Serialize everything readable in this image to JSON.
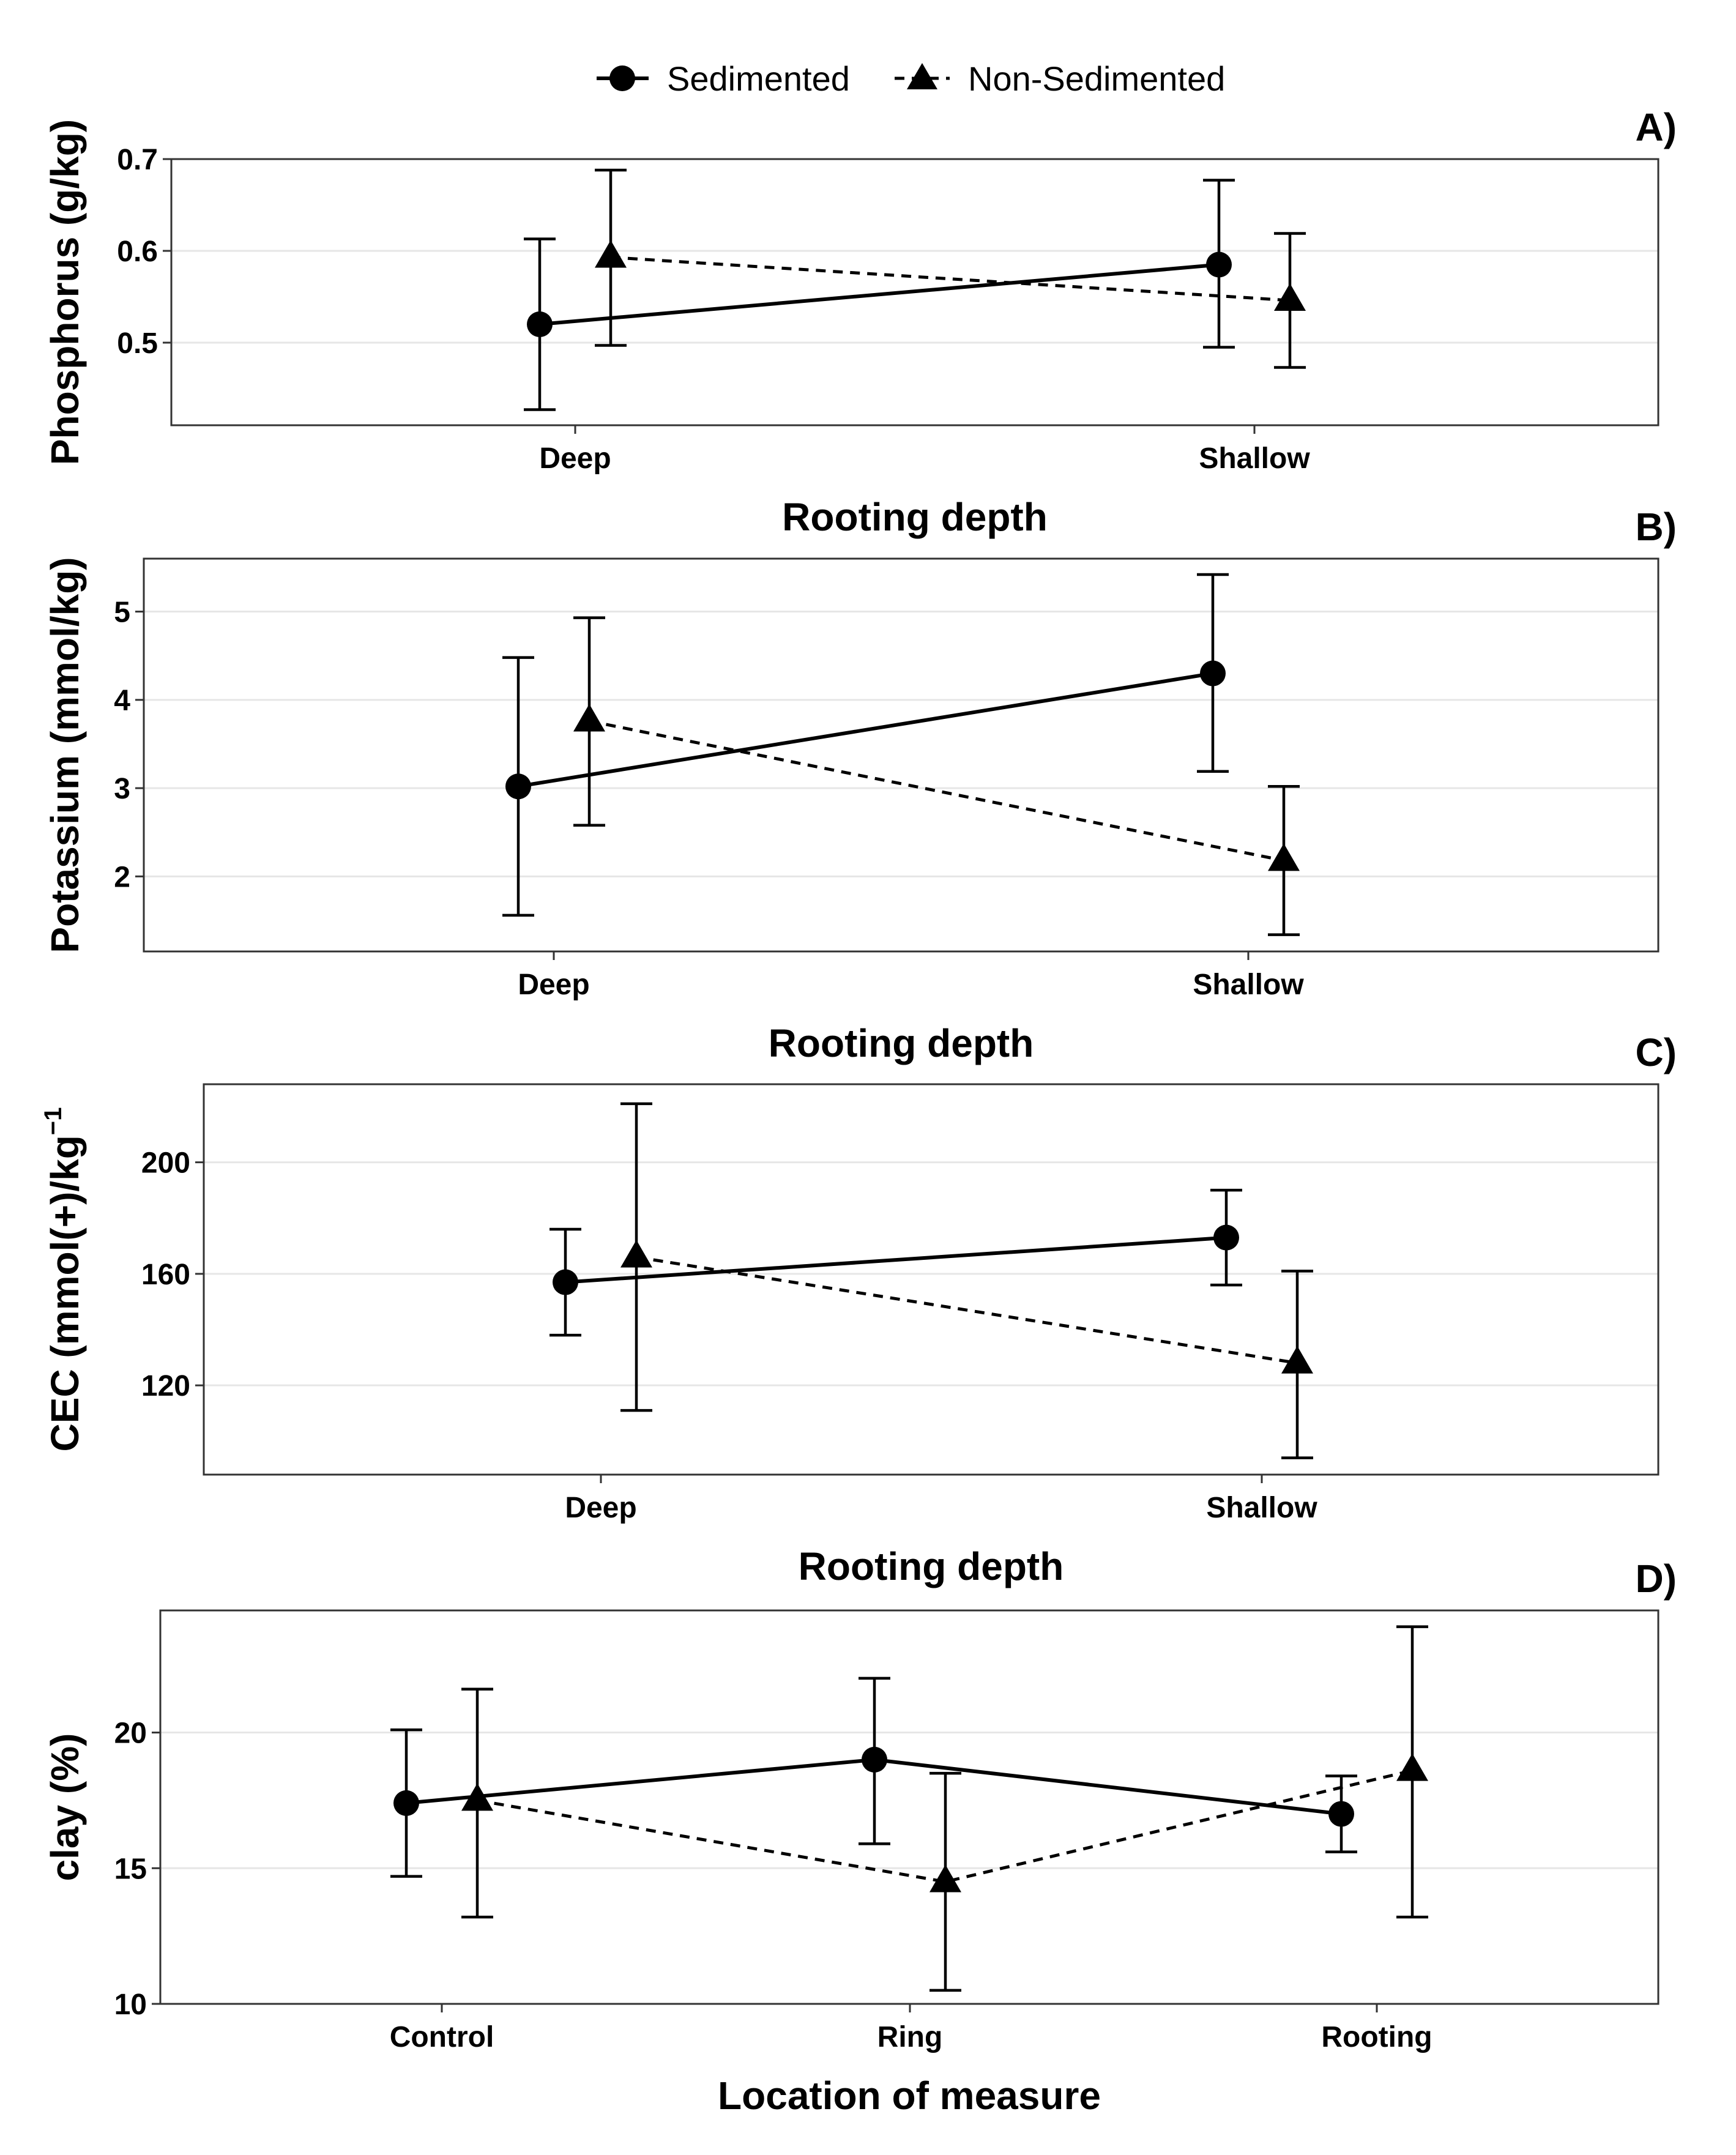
{
  "legend": {
    "placement": "top",
    "entries": [
      {
        "name": "Sedimented",
        "marker": "circle",
        "line": "solid"
      },
      {
        "name": "Non-Sedimented",
        "marker": "triangle",
        "line": "dashed"
      }
    ]
  },
  "chart_data": [
    {
      "type": "line",
      "panel_label": "A)",
      "xlabel": "Rooting depth",
      "ylabel": "Phosphorus (g/kg)",
      "categories": [
        "Deep",
        "Shallow"
      ],
      "ylim": [
        0.41,
        0.7
      ],
      "yticks": [
        0.5,
        0.6,
        0.7
      ],
      "ytick_labels": [
        "0.5",
        "0.6",
        "0.7"
      ],
      "grid": "horizontal",
      "series": [
        {
          "name": "Sedimented",
          "values": [
            0.52,
            0.585
          ],
          "lower": [
            0.427,
            0.495
          ],
          "upper": [
            0.613,
            0.677
          ]
        },
        {
          "name": "Non-Sedimented",
          "values": [
            0.593,
            0.546
          ],
          "lower": [
            0.497,
            0.473
          ],
          "upper": [
            0.688,
            0.619
          ]
        }
      ]
    },
    {
      "type": "line",
      "panel_label": "B)",
      "xlabel": "Rooting depth",
      "ylabel": "Potassium (mmol/kg)",
      "categories": [
        "Deep",
        "Shallow"
      ],
      "ylim": [
        1.15,
        5.6
      ],
      "yticks": [
        2,
        3,
        4,
        5
      ],
      "ytick_labels": [
        "2",
        "3",
        "4",
        "5"
      ],
      "grid": "horizontal",
      "series": [
        {
          "name": "Sedimented",
          "values": [
            3.02,
            4.3
          ],
          "lower": [
            1.56,
            3.19
          ],
          "upper": [
            4.48,
            5.42
          ]
        },
        {
          "name": "Non-Sedimented",
          "values": [
            3.76,
            2.18
          ],
          "lower": [
            2.58,
            1.34
          ],
          "upper": [
            4.93,
            3.02
          ]
        }
      ]
    },
    {
      "type": "line",
      "panel_label": "C)",
      "xlabel": "Rooting depth",
      "ylabel": "CEC (mmol(+)/kg",
      "ylabel_superscript": "−1",
      "categories": [
        "Deep",
        "Shallow"
      ],
      "ylim": [
        88,
        228
      ],
      "yticks": [
        120,
        160,
        200
      ],
      "ytick_labels": [
        "120",
        "160",
        "200"
      ],
      "grid": "horizontal",
      "series": [
        {
          "name": "Sedimented",
          "values": [
            157,
            173
          ],
          "lower": [
            138,
            156
          ],
          "upper": [
            176,
            190
          ]
        },
        {
          "name": "Non-Sedimented",
          "values": [
            166,
            128
          ],
          "lower": [
            111,
            94
          ],
          "upper": [
            221,
            161
          ]
        }
      ]
    },
    {
      "type": "line",
      "panel_label": "D)",
      "xlabel": "Location of measure",
      "ylabel": "clay (%)",
      "categories": [
        "Control",
        "Ring",
        "Rooting"
      ],
      "ylim": [
        10,
        24.5
      ],
      "yticks": [
        10,
        15,
        20
      ],
      "ytick_labels": [
        "10",
        "15",
        "20"
      ],
      "grid": "horizontal",
      "series": [
        {
          "name": "Sedimented",
          "values": [
            17.4,
            19.0,
            17.0
          ],
          "lower": [
            14.7,
            15.9,
            15.6
          ],
          "upper": [
            20.1,
            22.0,
            18.4
          ]
        },
        {
          "name": "Non-Sedimented",
          "values": [
            17.5,
            14.5,
            18.6
          ],
          "lower": [
            13.2,
            10.5,
            13.2
          ],
          "upper": [
            21.6,
            18.5,
            23.9
          ]
        }
      ]
    }
  ]
}
